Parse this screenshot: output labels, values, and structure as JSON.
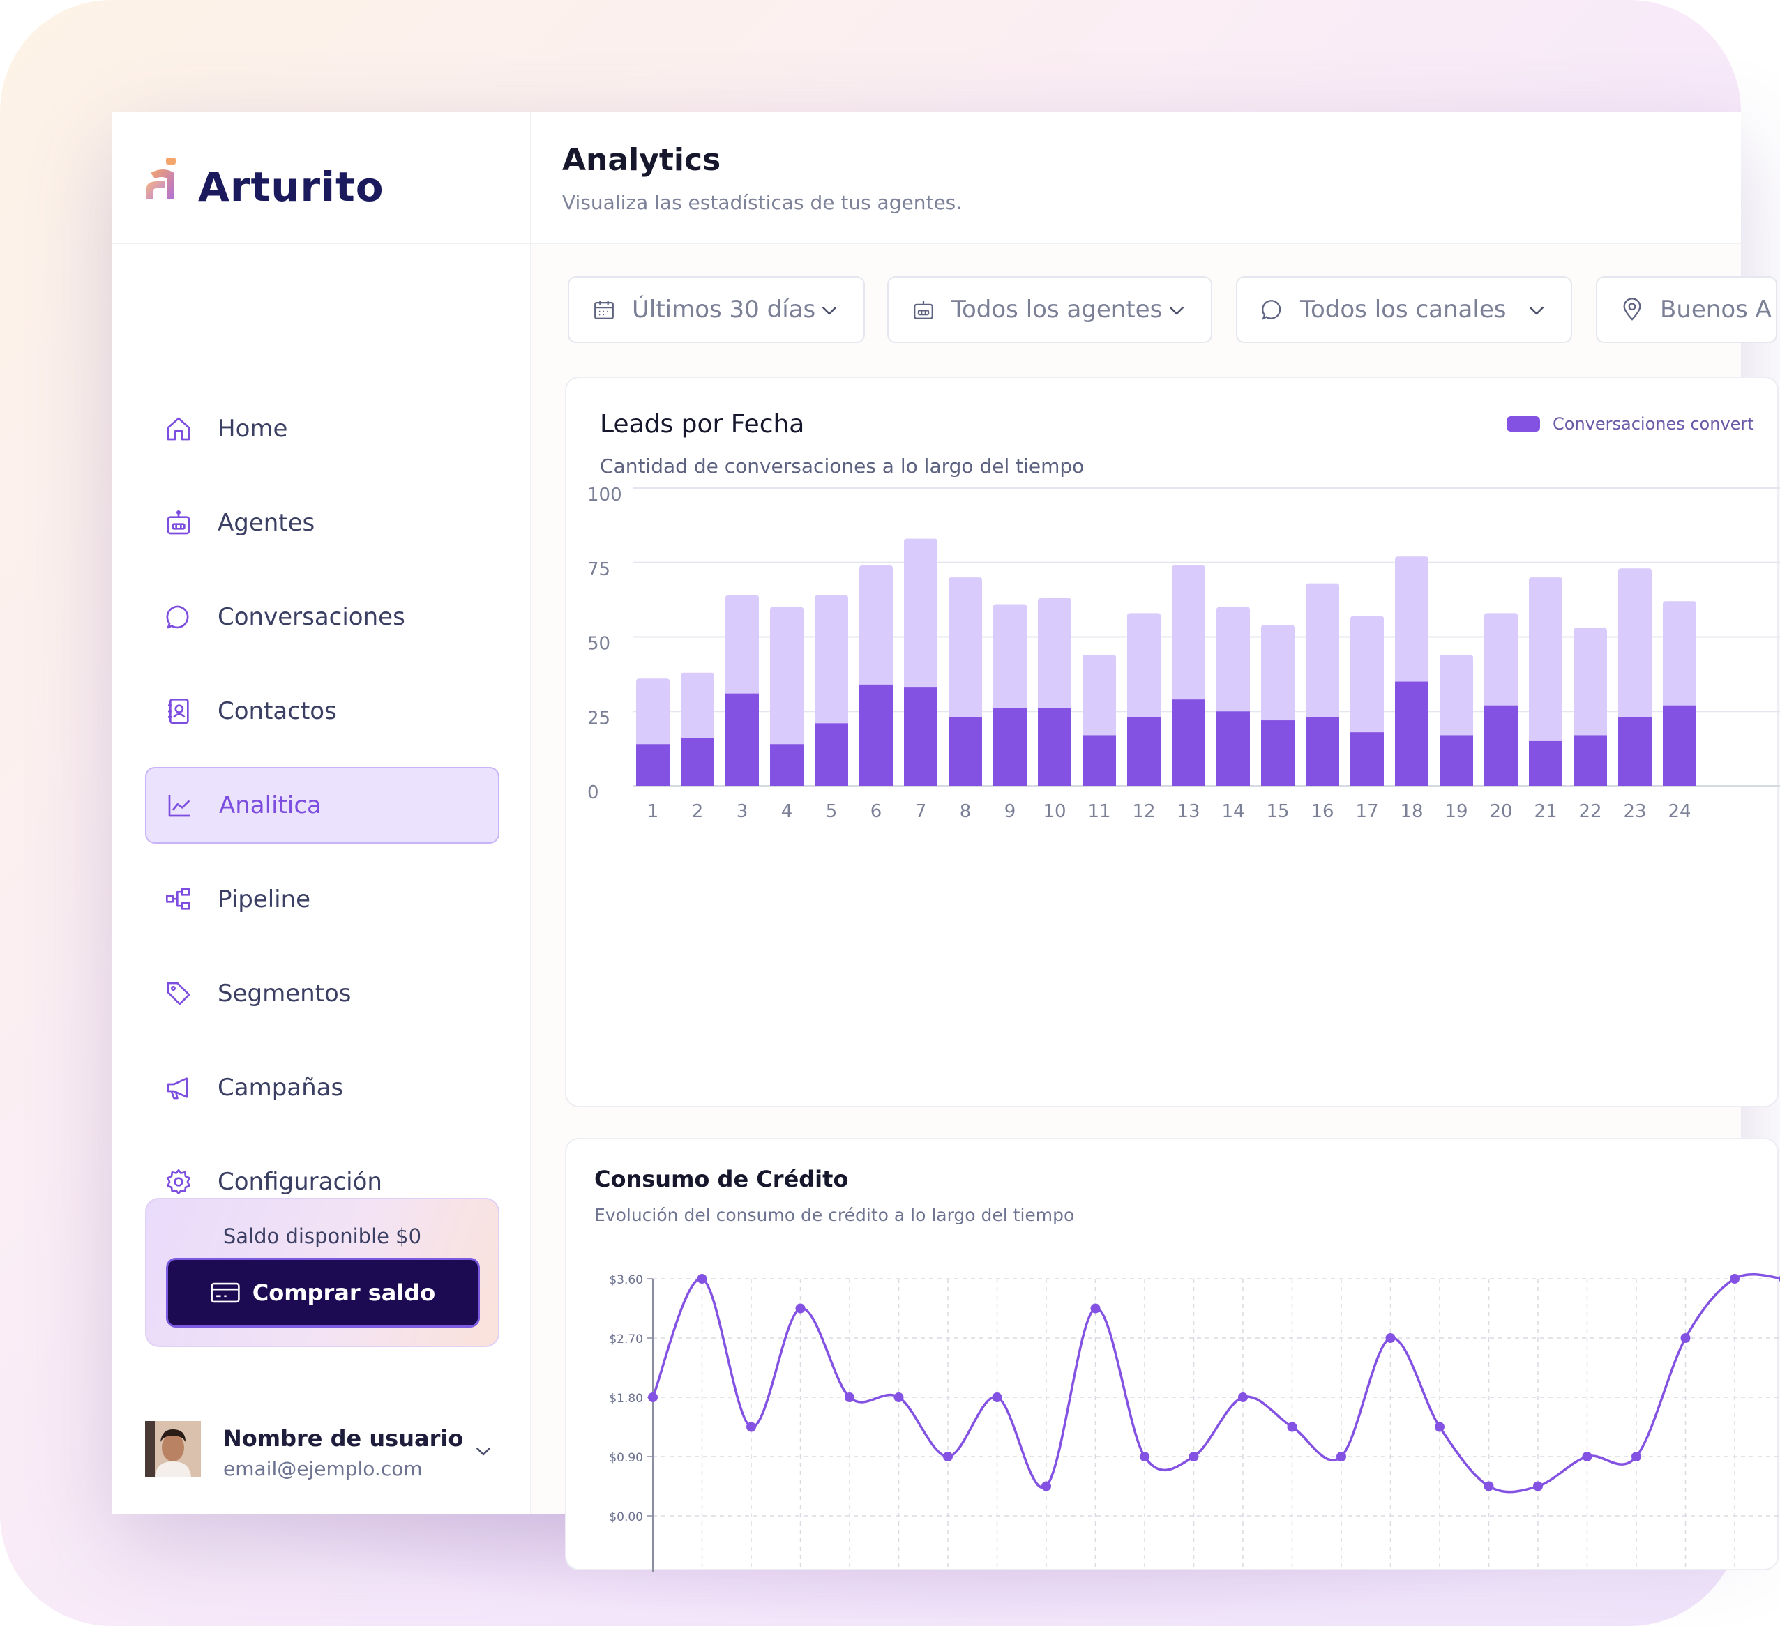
{
  "app": {
    "logo_text": "Arturito"
  },
  "sidebar": {
    "items": [
      {
        "label": "Home",
        "icon": "home-icon"
      },
      {
        "label": "Agentes",
        "icon": "robot-icon"
      },
      {
        "label": "Conversaciones",
        "icon": "chat-bubble-icon"
      },
      {
        "label": "Contactos",
        "icon": "contact-book-icon"
      },
      {
        "label": "Analitica",
        "icon": "line-chart-icon",
        "active": true
      },
      {
        "label": "Pipeline",
        "icon": "flow-icon"
      },
      {
        "label": "Segmentos",
        "icon": "tag-icon"
      },
      {
        "label": "Campañas",
        "icon": "megaphone-icon"
      },
      {
        "label": "Configuración",
        "icon": "gear-icon"
      }
    ],
    "credit": {
      "label": "Saldo disponible $0",
      "button_label": "Comprar saldo"
    },
    "user": {
      "name": "Nombre de usuario",
      "email": "email@ejemplo.com"
    }
  },
  "header": {
    "title": "Analytics",
    "subtitle": "Visualiza las estadísticas de tus agentes."
  },
  "filters": [
    {
      "label": "Últimos 30 días",
      "icon": "calendar-icon"
    },
    {
      "label": "Todos los agentes",
      "icon": "robot-icon"
    },
    {
      "label": "Todos los canales",
      "icon": "chat-bubble-icon"
    },
    {
      "label": "Buenos A",
      "icon": "location-pin-icon"
    }
  ],
  "colors": {
    "accent": "#8352e3",
    "accent_light": "#d9cbfc",
    "active_bg": "#ebe3fd",
    "button_dark": "#1c0a52",
    "brand_text": "#1b1a5c"
  },
  "leads_card": {
    "title": "Leads por Fecha",
    "subtitle": "Cantidad de conversaciones a lo largo del tiempo",
    "legend": "Conversaciones convert"
  },
  "credit_card": {
    "title": "Consumo de Crédito",
    "subtitle": "Evolución del consumo de crédito a lo largo del tiempo"
  },
  "chart_data": [
    {
      "type": "bar",
      "title": "Leads por Fecha",
      "subtitle": "Cantidad de conversaciones a lo largo del tiempo",
      "categories": [
        "1",
        "2",
        "3",
        "4",
        "5",
        "6",
        "7",
        "8",
        "9",
        "10",
        "11",
        "12",
        "13",
        "14",
        "15",
        "16",
        "17",
        "18",
        "19",
        "20",
        "21",
        "22",
        "23",
        "24"
      ],
      "stacked": true,
      "series": [
        {
          "name": "Conversaciones convert",
          "color": "#8352e3",
          "values": [
            14,
            16,
            31,
            14,
            21,
            34,
            33,
            23,
            26,
            26,
            17,
            23,
            29,
            25,
            22,
            23,
            18,
            35,
            17,
            27,
            15,
            17,
            23,
            27
          ]
        },
        {
          "color": "#d9cbfc",
          "values": [
            22,
            22,
            33,
            46,
            43,
            40,
            50,
            47,
            35,
            37,
            27,
            35,
            45,
            35,
            32,
            45,
            39,
            42,
            27,
            31,
            55,
            36,
            50,
            35
          ]
        }
      ],
      "yticks": [
        0,
        25,
        50,
        75,
        100
      ],
      "ylim": [
        0,
        100
      ],
      "grid": true,
      "legend_position": "top-right"
    },
    {
      "type": "line",
      "title": "Consumo de Crédito",
      "subtitle": "Evolución del consumo de crédito a lo largo del tiempo",
      "x": [
        0,
        1,
        2,
        3,
        4,
        5,
        6,
        7,
        8,
        9,
        10,
        11,
        12,
        13,
        14,
        15,
        16,
        17,
        18,
        19,
        20,
        21,
        22,
        23
      ],
      "values": [
        1.8,
        3.6,
        1.35,
        3.15,
        1.8,
        1.8,
        0.9,
        1.8,
        0.45,
        3.15,
        0.9,
        0.9,
        1.8,
        1.35,
        0.9,
        2.7,
        1.35,
        0.45,
        0.45,
        0.9,
        0.9,
        2.7,
        3.6,
        3.6
      ],
      "yticks": [
        "$0.00",
        "$0.90",
        "$1.80",
        "$2.70",
        "$3.60"
      ],
      "ylim": [
        0,
        3.6
      ],
      "color": "#8352e3",
      "grid": true
    }
  ]
}
